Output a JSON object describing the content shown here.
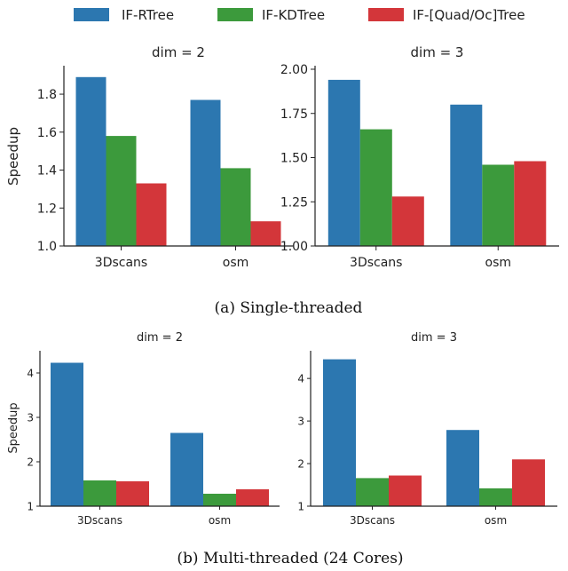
{
  "legend": {
    "placement": "top-center",
    "entries": [
      {
        "label": "IF-RTree",
        "color": "#2c77b0"
      },
      {
        "label": "IF-KDTree",
        "color": "#3c9a3c"
      },
      {
        "label": "IF-[Quad/Oc]Tree",
        "color": "#d3363a"
      }
    ]
  },
  "captions": {
    "a": "(a) Single-threaded",
    "b": "(b) Multi-threaded (24 Cores)"
  },
  "chart_data": [
    {
      "type": "bar",
      "panel": "a-left",
      "title": "dim = 2",
      "xlabel": "",
      "ylabel": "Speedup",
      "categories": [
        "3Dscans",
        "osm"
      ],
      "ylim": [
        1.0,
        1.95
      ],
      "yticks": [
        1.0,
        1.2,
        1.4,
        1.6,
        1.8
      ],
      "series": [
        {
          "name": "IF-RTree",
          "values": [
            1.89,
            1.77
          ]
        },
        {
          "name": "IF-KDTree",
          "values": [
            1.58,
            1.41
          ]
        },
        {
          "name": "IF-[Quad/Oc]Tree",
          "values": [
            1.33,
            1.13
          ]
        }
      ],
      "grid": false
    },
    {
      "type": "bar",
      "panel": "a-right",
      "title": "dim = 3",
      "xlabel": "",
      "ylabel": "",
      "categories": [
        "3Dscans",
        "osm"
      ],
      "ylim": [
        1.0,
        2.02
      ],
      "yticks": [
        1.0,
        1.25,
        1.5,
        1.75,
        2.0
      ],
      "series": [
        {
          "name": "IF-RTree",
          "values": [
            1.94,
            1.8
          ]
        },
        {
          "name": "IF-KDTree",
          "values": [
            1.66,
            1.46
          ]
        },
        {
          "name": "IF-[Quad/Oc]Tree",
          "values": [
            1.28,
            1.48
          ]
        }
      ],
      "grid": false
    },
    {
      "type": "bar",
      "panel": "b-left",
      "title": "dim = 2",
      "xlabel": "",
      "ylabel": "Speedup",
      "categories": [
        "3Dscans",
        "osm"
      ],
      "ylim": [
        1.0,
        4.5
      ],
      "yticks": [
        1,
        2,
        3,
        4
      ],
      "series": [
        {
          "name": "IF-RTree",
          "values": [
            4.23,
            2.65
          ]
        },
        {
          "name": "IF-KDTree",
          "values": [
            1.58,
            1.28
          ]
        },
        {
          "name": "IF-[Quad/Oc]Tree",
          "values": [
            1.56,
            1.38
          ]
        }
      ],
      "grid": false
    },
    {
      "type": "bar",
      "panel": "b-right",
      "title": "dim = 3",
      "xlabel": "",
      "ylabel": "",
      "categories": [
        "3Dscans",
        "osm"
      ],
      "ylim": [
        1.0,
        4.65
      ],
      "yticks": [
        1,
        2,
        3,
        4
      ],
      "series": [
        {
          "name": "IF-RTree",
          "values": [
            4.45,
            2.79
          ]
        },
        {
          "name": "IF-KDTree",
          "values": [
            1.66,
            1.42
          ]
        },
        {
          "name": "IF-[Quad/Oc]Tree",
          "values": [
            1.72,
            2.1
          ]
        }
      ],
      "grid": false
    }
  ]
}
